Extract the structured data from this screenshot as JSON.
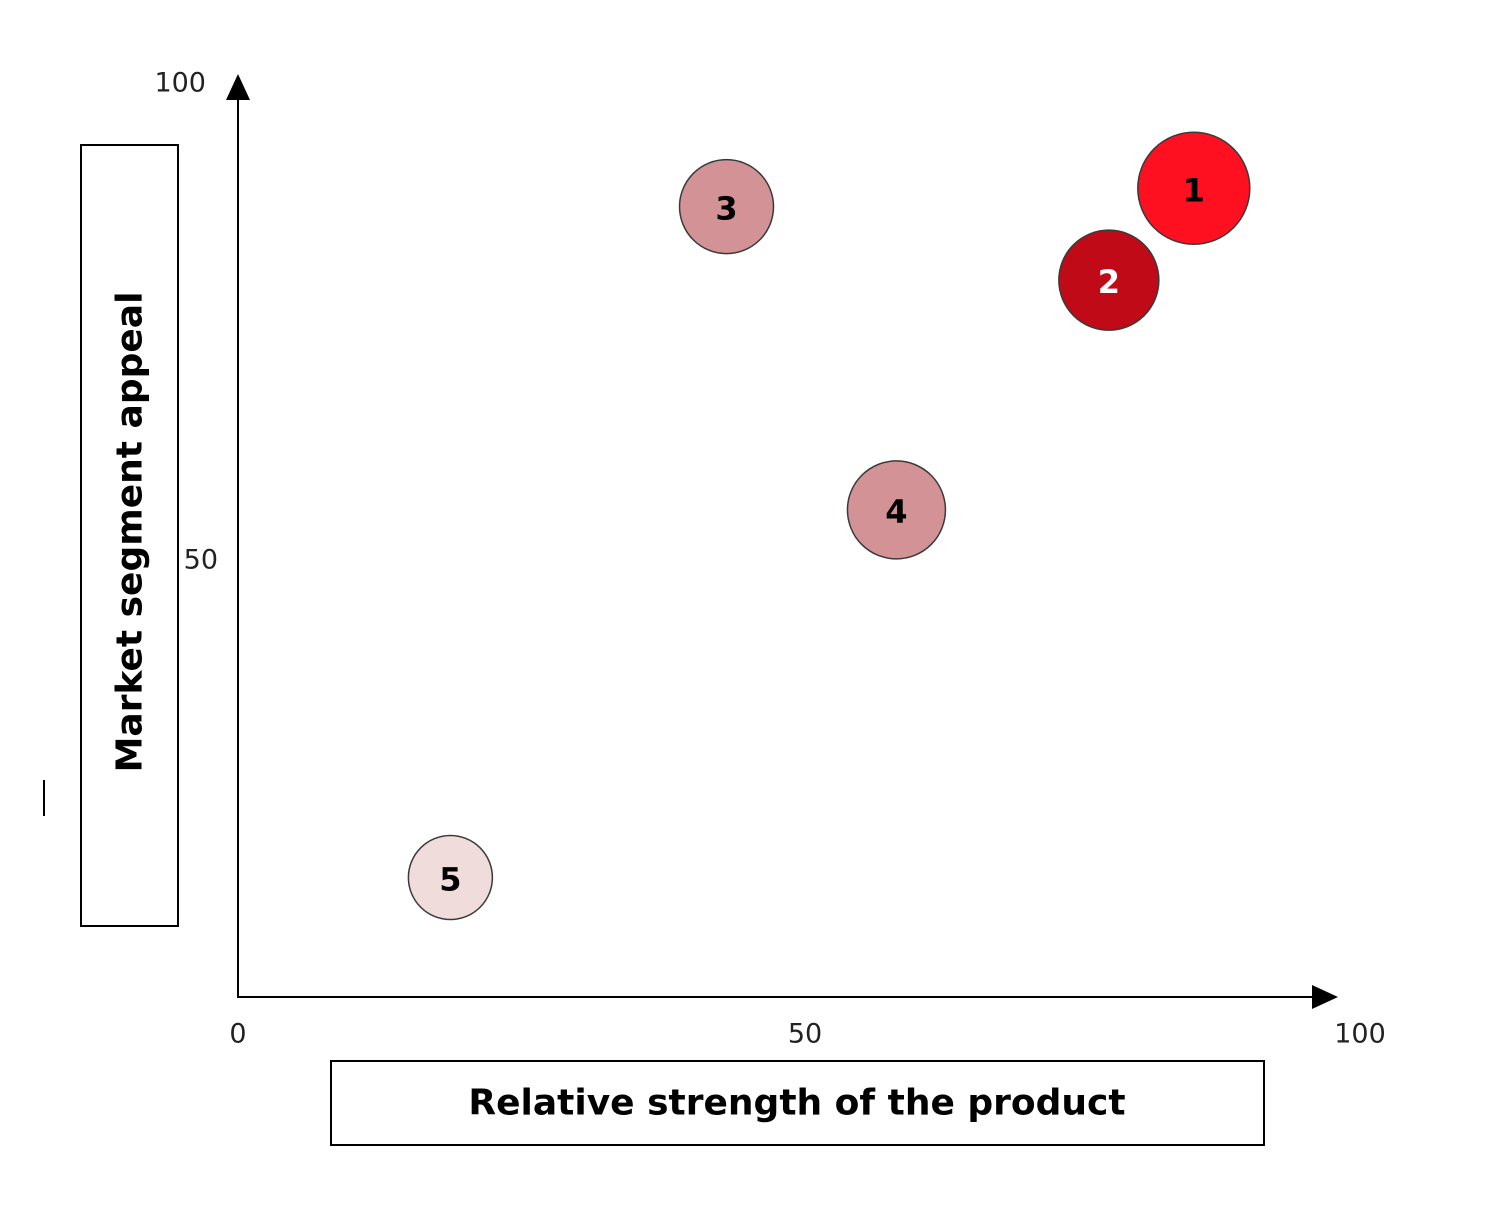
{
  "chart_data": {
    "type": "scatter",
    "title": "",
    "xlabel": "Relative strength of the product",
    "ylabel": "Market segment appeal",
    "xlim": [
      0,
      100
    ],
    "ylim": [
      0,
      100
    ],
    "x_ticks": [
      "0",
      "50",
      "100"
    ],
    "y_ticks": [
      "50",
      "100"
    ],
    "grid": false,
    "legend": "none",
    "points": [
      {
        "label": "1",
        "x": 90,
        "y": 88,
        "color": "#ff1020",
        "text_color": "#000000"
      },
      {
        "label": "2",
        "x": 82,
        "y": 78,
        "color": "#c00a18",
        "text_color": "#ffffff"
      },
      {
        "label": "3",
        "x": 46,
        "y": 86,
        "color": "#d39396",
        "text_color": "#000000"
      },
      {
        "label": "4",
        "x": 62,
        "y": 53,
        "color": "#d39396",
        "text_color": "#000000"
      },
      {
        "label": "5",
        "x": 20,
        "y": 13,
        "color": "#f1dcdc",
        "text_color": "#000000"
      }
    ]
  }
}
